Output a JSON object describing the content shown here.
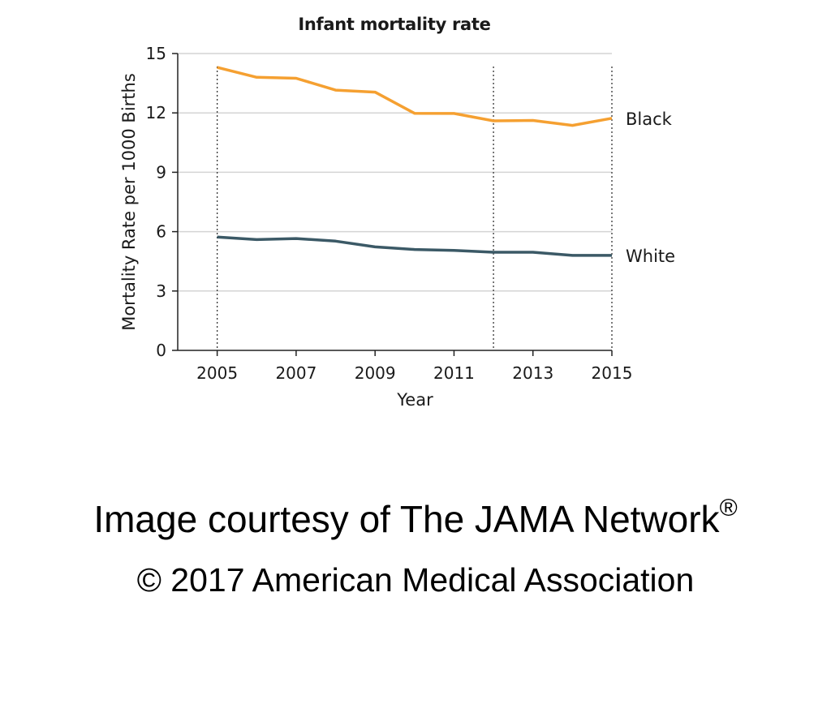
{
  "chart_data": {
    "type": "line",
    "title": "Infant mortality rate",
    "xlabel": "Year",
    "ylabel": "Mortality Rate per 1000 Births",
    "x": [
      2005,
      2006,
      2007,
      2008,
      2009,
      2010,
      2011,
      2012,
      2013,
      2014,
      2015
    ],
    "xticks": [
      2005,
      2007,
      2009,
      2011,
      2013,
      2015
    ],
    "yticks": [
      0,
      3,
      6,
      9,
      12,
      15
    ],
    "xlim": [
      2004,
      2015
    ],
    "ylim": [
      0,
      15
    ],
    "grid": "horizontal",
    "legend": "direct labels at right end of lines",
    "reference_lines_x": [
      2005,
      2012,
      2015
    ],
    "series": [
      {
        "name": "Black",
        "color": "#f5a031",
        "values": [
          14.3,
          13.8,
          13.75,
          13.15,
          13.05,
          11.98,
          11.97,
          11.6,
          11.62,
          11.37,
          11.73
        ]
      },
      {
        "name": "White",
        "color": "#3b5966",
        "values": [
          5.73,
          5.6,
          5.65,
          5.52,
          5.23,
          5.1,
          5.05,
          4.96,
          4.96,
          4.8,
          4.8
        ]
      }
    ]
  },
  "credit": {
    "line1": "Image courtesy of The JAMA Network",
    "registered_mark": "®",
    "line2": "© 2017 American Medical Association"
  }
}
